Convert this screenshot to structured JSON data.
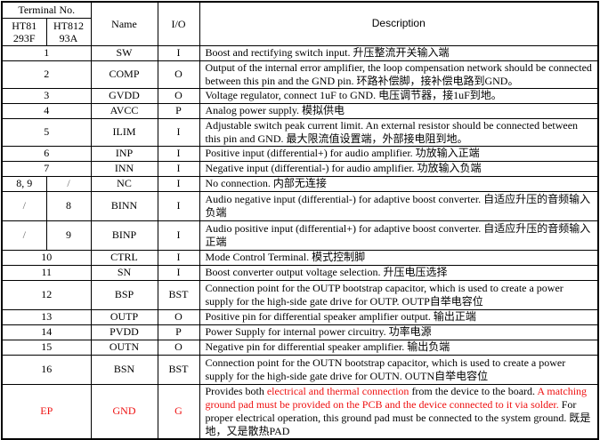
{
  "header": {
    "terminal_no": "Terminal No.",
    "col_a": "HT81 293F",
    "col_b": "HT812 93A",
    "name": "Name",
    "io": "I/O",
    "description": "Description"
  },
  "colors": {
    "highlight": "#ee1111"
  },
  "rows": [
    {
      "a": "1",
      "name": "SW",
      "io": "I",
      "desc": "Boost and rectifying switch input. 升压整流开关输入端"
    },
    {
      "a": "2",
      "name": "COMP",
      "io": "O",
      "desc": "Output of the internal error amplifier, the loop compensation network should be connected between this pin and the GND pin. 环路补偿脚，接补偿电路到GND。"
    },
    {
      "a": "3",
      "name": "GVDD",
      "io": "O",
      "desc": "Voltage regulator, connect 1uF to GND. 电压调节器，接1uF到地。"
    },
    {
      "a": "4",
      "name": "AVCC",
      "io": "P",
      "desc": "Analog power supply. 模拟供电"
    },
    {
      "a": "5",
      "name": "ILIM",
      "io": "I",
      "desc": "Adjustable switch peak current limit. An external resistor should be connected between this pin and GND. 最大限流值设置端，外部接电阻到地。"
    },
    {
      "a": "6",
      "name": "INP",
      "io": "I",
      "desc": "Positive input (differential+) for audio amplifier. 功放输入正端"
    },
    {
      "a": "7",
      "name": "INN",
      "io": "I",
      "desc": "Negative input (differential-) for audio amplifier. 功放输入负端"
    },
    {
      "a": "8, 9",
      "b": "/",
      "name": "NC",
      "io": "I",
      "desc": "No connection. 内部无连接"
    },
    {
      "a": "/",
      "b": "8",
      "name": "BINN",
      "io": "I",
      "desc": "Audio negative input (differential-) for adaptive boost converter. 自适应升压的音频输入负端"
    },
    {
      "a": "/",
      "b": "9",
      "name": "BINP",
      "io": "I",
      "desc": "Audio positive input (differential+) for adaptive boost converter. 自适应升压的音频输入正端"
    },
    {
      "a": "10",
      "name": "CTRL",
      "io": "I",
      "desc": "Mode Control Terminal. 模式控制脚"
    },
    {
      "a": "11",
      "name": "SN",
      "io": "I",
      "desc": "Boost converter output voltage selection. 升压电压选择"
    },
    {
      "a": "12",
      "name": "BSP",
      "io": "BST",
      "desc": "Connection point for the OUTP bootstrap capacitor, which is used to create a power supply for the high-side gate drive for OUTP. OUTP自举电容位"
    },
    {
      "a": "13",
      "name": "OUTP",
      "io": "O",
      "desc": "Positive pin for differential speaker amplifier output. 输出正端"
    },
    {
      "a": "14",
      "name": "PVDD",
      "io": "P",
      "desc": "Power Supply for internal power circuitry. 功率电源"
    },
    {
      "a": "15",
      "name": "OUTN",
      "io": "O",
      "desc": "Negative pin for differential speaker amplifier. 输出负端"
    },
    {
      "a": "16",
      "name": "BSN",
      "io": "BST",
      "desc": "Connection point for the OUTN bootstrap capacitor, which is used to create a power supply for the high-side gate drive for OUTN. OUTN自举电容位"
    }
  ],
  "ep_row": {
    "a": "EP",
    "name": "GND",
    "io": "G",
    "desc_parts": [
      "Provides both ",
      "electrical and thermal connection",
      " from the device to the board. ",
      "A matching ground pad must be provided on the PCB and the device connected to it via solder.",
      " For proper electrical operation, this ground pad must be connected to the system ground. 既是地，又是散热PAD"
    ]
  }
}
